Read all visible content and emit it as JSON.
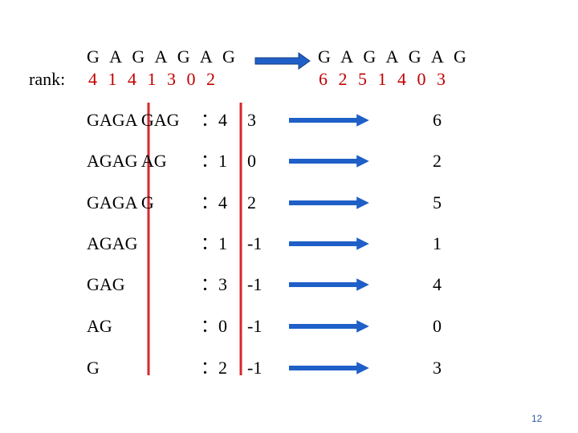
{
  "header": {
    "sequence_left": "G A G A G A G",
    "rank_label": "rank:",
    "rank_left": "4 1 4 1 3 0 2",
    "sequence_right": "G A G A G A G",
    "rank_right": "6 2 5 1 4 0 3"
  },
  "rows": [
    {
      "suffix": "GAGA GAG",
      "first": "：4",
      "second": "3",
      "result": "6"
    },
    {
      "suffix": "AGAG AG",
      "first": "：1",
      "second": "0",
      "result": "2"
    },
    {
      "suffix": "GAGA G",
      "first": "：4",
      "second": "2",
      "result": "5"
    },
    {
      "suffix": "AGAG",
      "first": "：1",
      "second": "-1",
      "result": "1"
    },
    {
      "suffix": "GAG",
      "first": "：3",
      "second": "-1",
      "result": "4"
    },
    {
      "suffix": "AG",
      "first": "：0",
      "second": "-1",
      "result": "0"
    },
    {
      "suffix": "G",
      "first": "：2",
      "second": "-1",
      "result": "3"
    }
  ],
  "page_number": "12"
}
